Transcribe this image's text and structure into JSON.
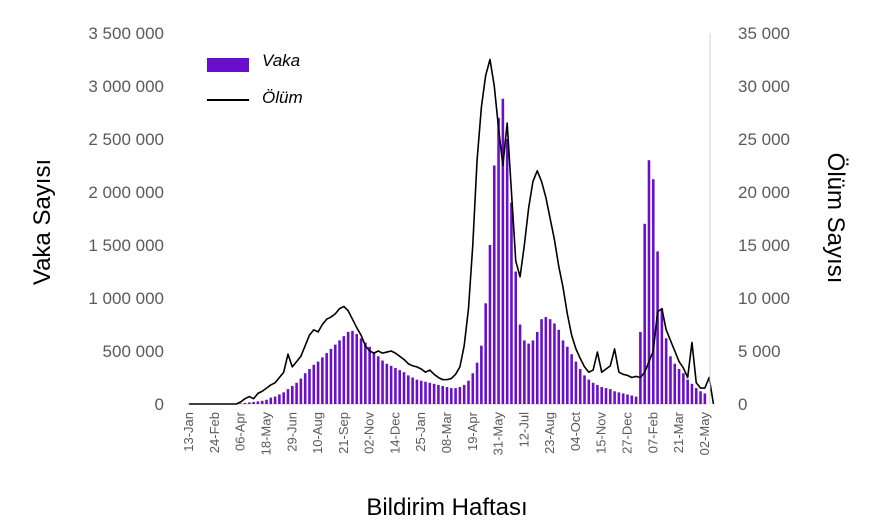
{
  "chart_data": {
    "type": "bar+line",
    "xlabel": "Bildirim Haftası",
    "ylabel_left": "Vaka Sayısı",
    "ylabel_right": "Ölüm Sayısı",
    "ylim_left": [
      0,
      3500000
    ],
    "ylim_right": [
      0,
      35000
    ],
    "yticks_left": [
      "0",
      "500 000",
      "1 000 000",
      "1 500 000",
      "2 000 000",
      "2 500 000",
      "3 000 000",
      "3 500 000"
    ],
    "yticks_right": [
      "0",
      "5 000",
      "10 000",
      "15 000",
      "20 000",
      "25 000",
      "30 000",
      "35 000"
    ],
    "xtick_labels": [
      "13-Jan",
      "24-Feb",
      "06-Apr",
      "18-May",
      "29-Jun",
      "10-Aug",
      "21-Sep",
      "02-Nov",
      "14-Dec",
      "25-Jan",
      "08-Mar",
      "19-Apr",
      "31-May",
      "12-Jul",
      "23-Aug",
      "04-Oct",
      "15-Nov",
      "27-Dec",
      "07-Feb",
      "21-Mar",
      "02-May"
    ],
    "grid": false,
    "legend_position": "top-left",
    "colors": {
      "vaka": "#6a0dcc",
      "olum": "#000000"
    },
    "series": [
      {
        "name": "Vaka",
        "type": "bar",
        "axis": "left",
        "values": [
          0,
          0,
          0,
          0,
          0,
          0,
          0,
          0,
          0,
          0,
          0,
          0,
          5000,
          10000,
          15000,
          20000,
          25000,
          30000,
          40000,
          60000,
          70000,
          90000,
          110000,
          140000,
          170000,
          200000,
          240000,
          290000,
          330000,
          370000,
          400000,
          440000,
          480000,
          520000,
          560000,
          600000,
          640000,
          680000,
          690000,
          660000,
          620000,
          580000,
          540000,
          490000,
          450000,
          410000,
          380000,
          360000,
          340000,
          320000,
          300000,
          270000,
          250000,
          230000,
          220000,
          210000,
          200000,
          190000,
          180000,
          170000,
          160000,
          150000,
          150000,
          160000,
          180000,
          220000,
          290000,
          390000,
          550000,
          950000,
          1500000,
          2250000,
          2700000,
          2880000,
          2500000,
          1900000,
          1250000,
          750000,
          600000,
          570000,
          600000,
          680000,
          800000,
          820000,
          800000,
          760000,
          700000,
          600000,
          540000,
          470000,
          400000,
          330000,
          270000,
          230000,
          200000,
          180000,
          160000,
          150000,
          140000,
          120000,
          110000,
          100000,
          90000,
          80000,
          70000,
          680000,
          1700000,
          2300000,
          2120000,
          1440000,
          900000,
          620000,
          450000,
          380000,
          330000,
          290000,
          230000,
          190000,
          150000,
          120000,
          100000
        ]
      },
      {
        "name": "Ölüm",
        "type": "line",
        "axis": "right",
        "values": [
          0,
          0,
          0,
          0,
          0,
          0,
          0,
          0,
          0,
          0,
          0,
          0,
          200,
          500,
          700,
          500,
          1000,
          1200,
          1500,
          1800,
          2000,
          2500,
          3000,
          4700,
          3500,
          4000,
          4500,
          5500,
          6500,
          7000,
          6800,
          7500,
          8000,
          8200,
          8500,
          9000,
          9200,
          8800,
          8000,
          7200,
          6500,
          5500,
          5000,
          4800,
          5000,
          4800,
          4900,
          5000,
          4800,
          4500,
          4200,
          3800,
          3600,
          3500,
          3300,
          3000,
          3200,
          2800,
          2500,
          2300,
          2300,
          2400,
          2800,
          3500,
          5500,
          9000,
          15000,
          23000,
          28000,
          31000,
          32500,
          30000,
          26000,
          22500,
          26500,
          20000,
          13500,
          12000,
          15000,
          18500,
          21000,
          22000,
          21000,
          19500,
          17500,
          15500,
          13000,
          11000,
          8500,
          6500,
          5200,
          4300,
          3500,
          3000,
          3200,
          4900,
          3000,
          3300,
          3600,
          5200,
          3000,
          2800,
          2700,
          2500,
          2600,
          2500,
          3000,
          4000,
          5000,
          8700,
          9000,
          7000,
          6000,
          5000,
          4000,
          3400,
          2500,
          5800,
          2000,
          1500,
          1500,
          2500,
          0
        ]
      }
    ]
  }
}
